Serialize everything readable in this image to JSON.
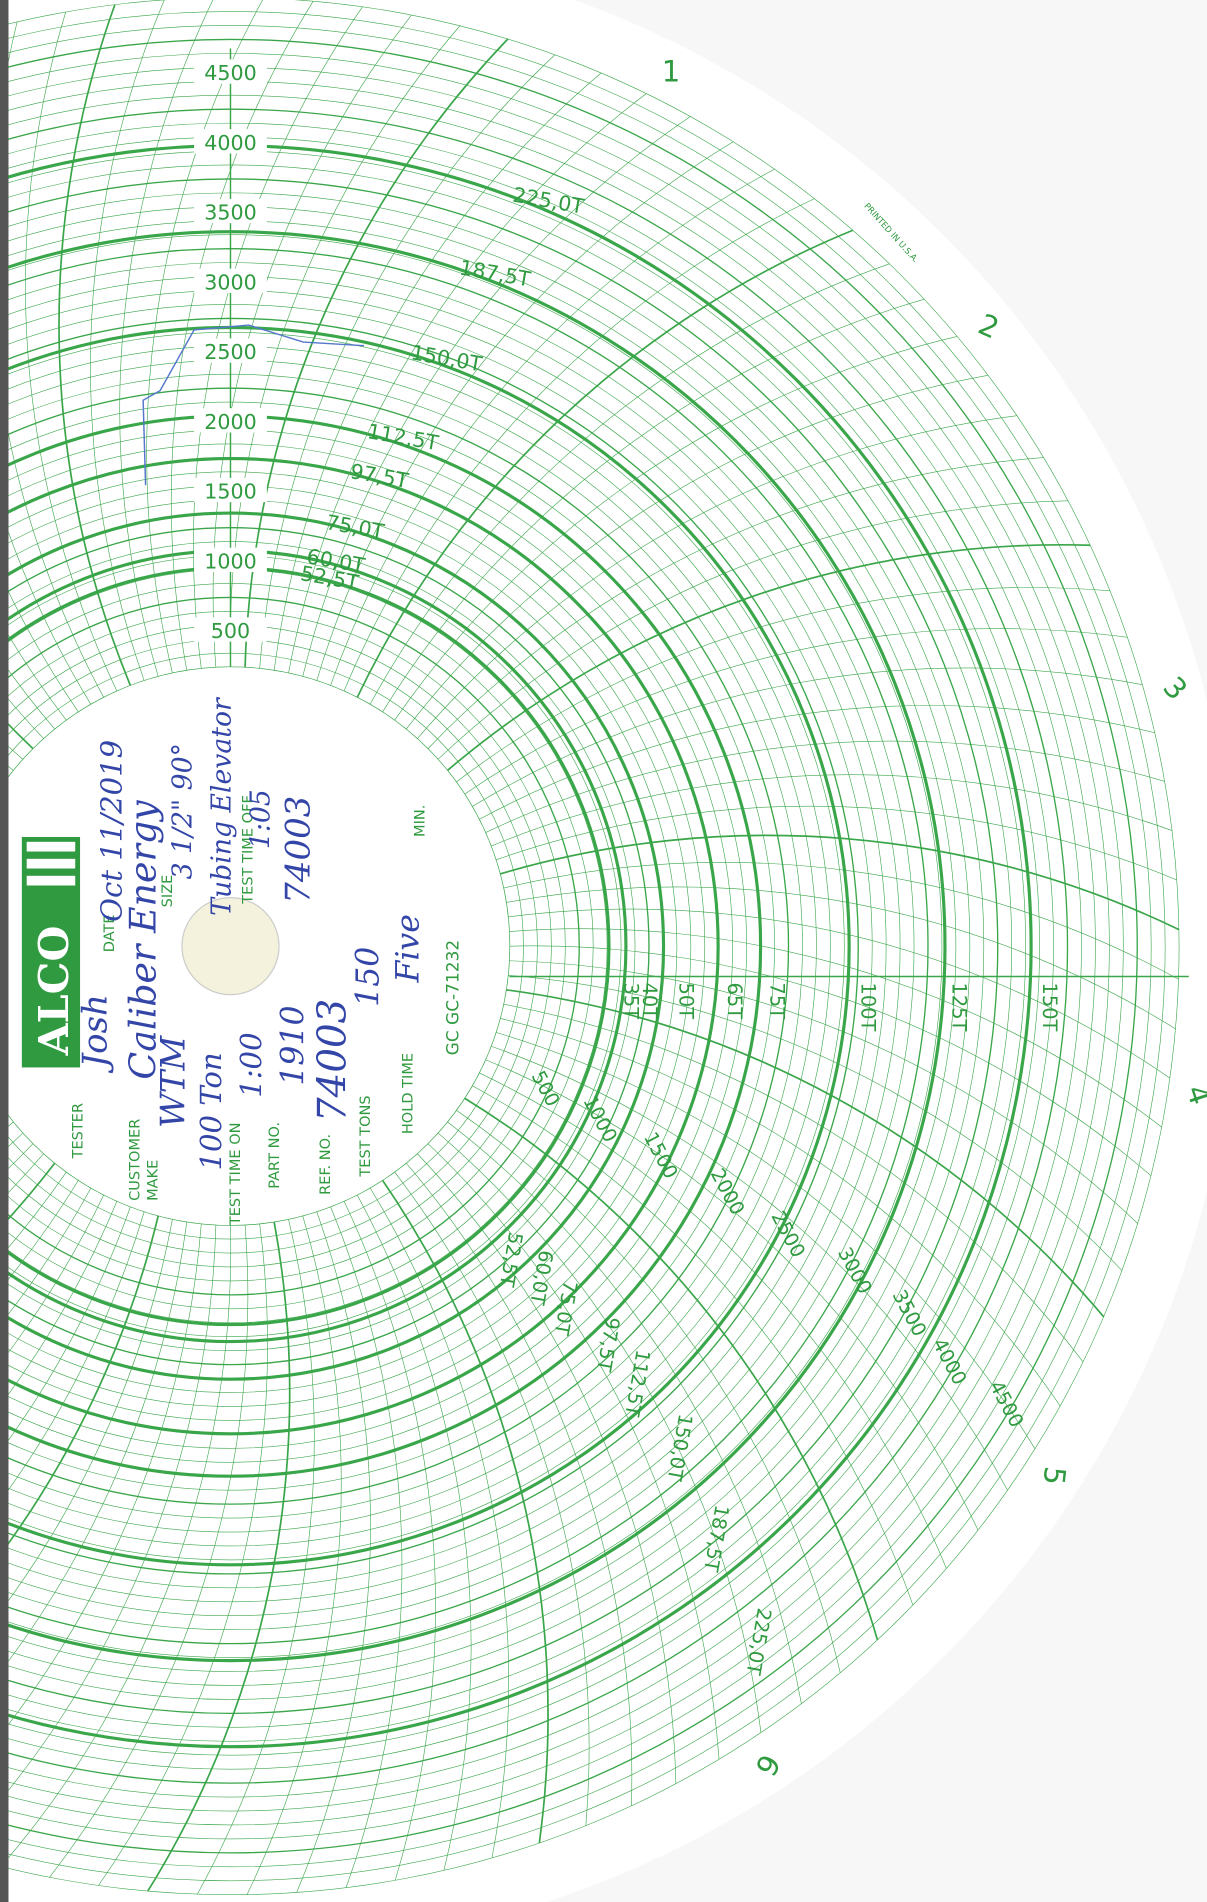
{
  "scale_pressure_upper": [
    "4500",
    "4000",
    "3500",
    "3000",
    "2500",
    "2000",
    "1500",
    "1000",
    "500"
  ],
  "scale_pressure_lower": [
    "500",
    "1000",
    "1500",
    "2000",
    "2500",
    "3000",
    "3500",
    "4000",
    "4500"
  ],
  "scale_tons_upper": [
    "225,0T",
    "187,5T",
    "150,0T",
    "112,5T",
    "97,5T",
    "75,0T",
    "60,0T",
    "52,5T"
  ],
  "scale_tons_lower": [
    "52,5T",
    "60,0T",
    "75,0T",
    "97,5T",
    "112,5T",
    "150,0T",
    "187,5T",
    "225,0T"
  ],
  "scale_tons_axis": [
    "35T",
    "40T",
    "50T",
    "65T",
    "75T",
    "100T",
    "125T",
    "150T"
  ],
  "hours": [
    "1",
    "2",
    "3",
    "4",
    "5",
    "6"
  ],
  "logo": "ALCO",
  "printed_note": "PRINTED IN U.S.A.",
  "chart_number": "GC GC-71232",
  "form": {
    "tester_label": "TESTER",
    "tester": "Josh",
    "date_label": "DATE",
    "date": "Oct 11/2019",
    "customer_label": "CUSTOMER",
    "customer": "Caliber Energy",
    "make_label": "MAKE",
    "make": "WTM",
    "size_label": "SIZE",
    "size": "3 1/2\" 90°",
    "capacity": "100 Ton",
    "description": "Tubing Elevator",
    "time_on_label": "TEST TIME ON",
    "time_on": "1:00",
    "time_off_label": "TEST TIME OFF",
    "time_off": "1:05",
    "part_label": "PART NO.",
    "part": "1910",
    "part_ref": "74003",
    "ref_label": "REF. NO.",
    "ref": "74003",
    "tons_label": "TEST TONS",
    "tons": "150",
    "hold_label": "HOLD TIME",
    "hold": "Five",
    "min_label": "MIN."
  }
}
